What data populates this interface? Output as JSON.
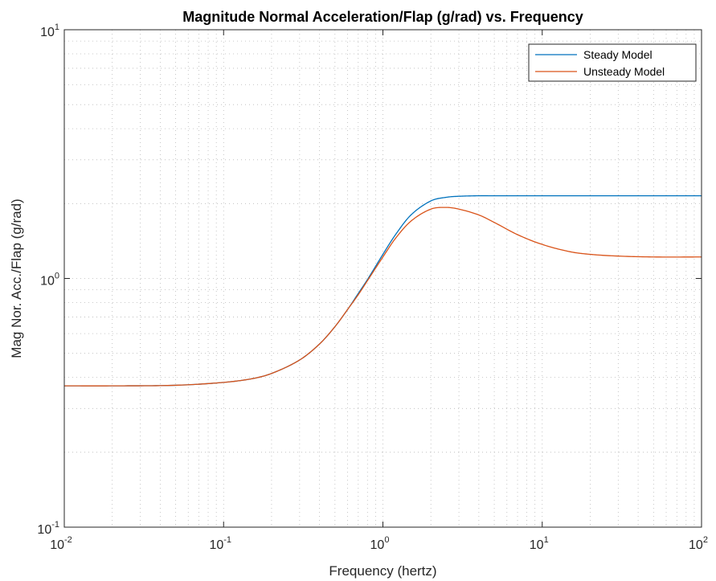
{
  "chart_data": {
    "type": "line",
    "title": "Magnitude Normal Acceleration/Flap (g/rad) vs. Frequency",
    "xlabel": "Frequency (hertz)",
    "ylabel": "Mag Nor. Acc./Flap (g/rad)",
    "xscale": "log",
    "yscale": "log",
    "xlim": [
      0.01,
      100
    ],
    "ylim": [
      0.1,
      10
    ],
    "grid": true,
    "minor_grid": true,
    "legend": "top-right",
    "x_ticks": [
      {
        "base": "10",
        "exp": "-2"
      },
      {
        "base": "10",
        "exp": "-1"
      },
      {
        "base": "10",
        "exp": "0"
      },
      {
        "base": "10",
        "exp": "1"
      },
      {
        "base": "10",
        "exp": "2"
      }
    ],
    "y_ticks": [
      {
        "base": "10",
        "exp": "-1"
      },
      {
        "base": "10",
        "exp": "0"
      },
      {
        "base": "10",
        "exp": "1"
      }
    ],
    "x": [
      0.01,
      0.02,
      0.05,
      0.1,
      0.15,
      0.2,
      0.3,
      0.4,
      0.5,
      0.6,
      0.7,
      0.8,
      1.0,
      1.2,
      1.5,
      2.0,
      2.5,
      3.0,
      4.0,
      5.0,
      7.0,
      10,
      15,
      20,
      30,
      50,
      100
    ],
    "series": [
      {
        "name": "Steady Model",
        "color": "#0072BD",
        "values": [
          0.37,
          0.37,
          0.372,
          0.382,
          0.395,
          0.415,
          0.47,
          0.545,
          0.64,
          0.75,
          0.87,
          0.99,
          1.25,
          1.5,
          1.8,
          2.05,
          2.12,
          2.14,
          2.15,
          2.15,
          2.15,
          2.15,
          2.15,
          2.15,
          2.15,
          2.15,
          2.15
        ]
      },
      {
        "name": "Unsteady Model",
        "color": "#D95319",
        "values": [
          0.37,
          0.37,
          0.372,
          0.382,
          0.395,
          0.415,
          0.47,
          0.545,
          0.64,
          0.75,
          0.86,
          0.98,
          1.22,
          1.45,
          1.7,
          1.9,
          1.93,
          1.9,
          1.8,
          1.68,
          1.5,
          1.37,
          1.28,
          1.25,
          1.23,
          1.22,
          1.22
        ]
      }
    ]
  }
}
